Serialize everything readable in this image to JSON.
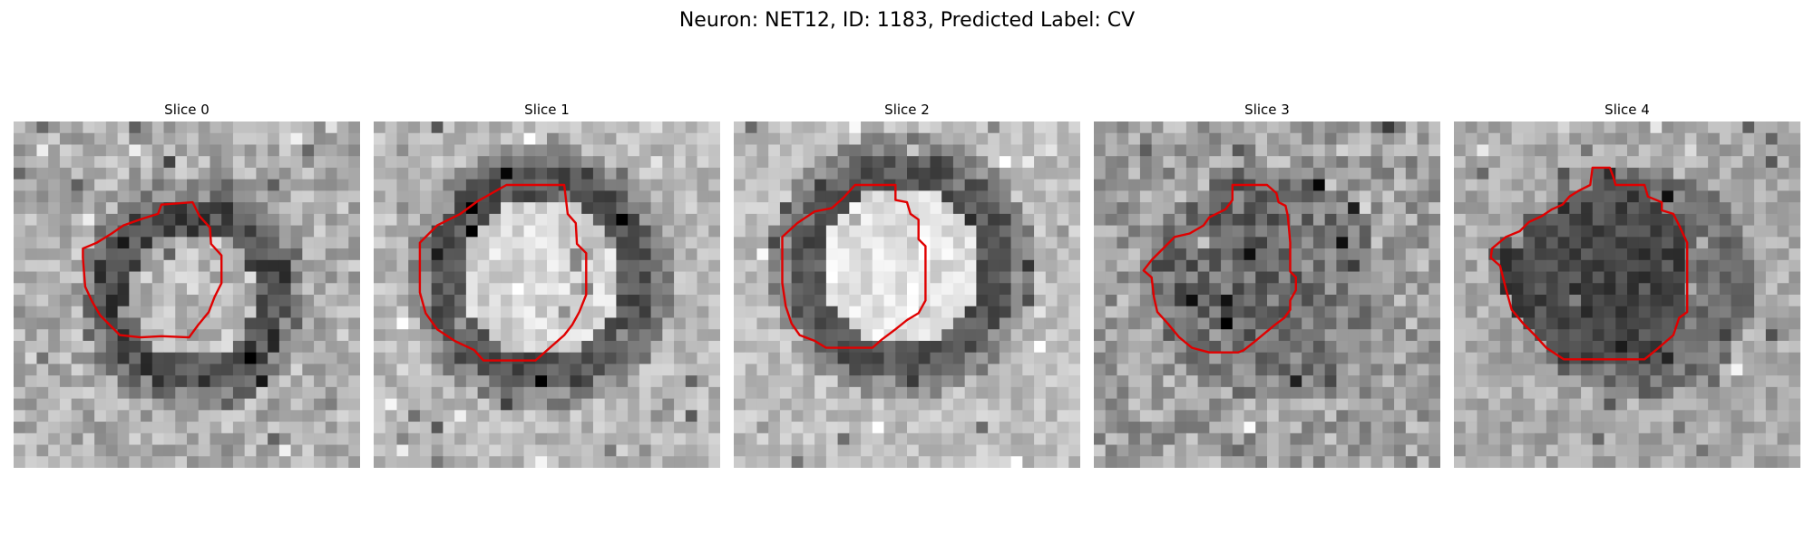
{
  "figure": {
    "title": "Neuron: NET12, ID: 1183, Predicted Label: CV"
  },
  "colors": {
    "contour": "#e00000",
    "background": "#ffffff"
  },
  "panels": [
    {
      "title": "Slice 0",
      "appearance": "dark ring around a mid-gray center; red contour traces the inner edge of the ring"
    },
    {
      "title": "Slice 1",
      "appearance": "bright center surrounded by a dark ring; red contour follows the outer edge of the ring"
    },
    {
      "title": "Slice 2",
      "appearance": "very bright center with a dark ring; red contour follows the ring"
    },
    {
      "title": "Slice 3",
      "appearance": "dark, noisy blob; red contour encloses it"
    },
    {
      "title": "Slice 4",
      "appearance": "uniformly dark blob; red contour encloses it"
    }
  ]
}
